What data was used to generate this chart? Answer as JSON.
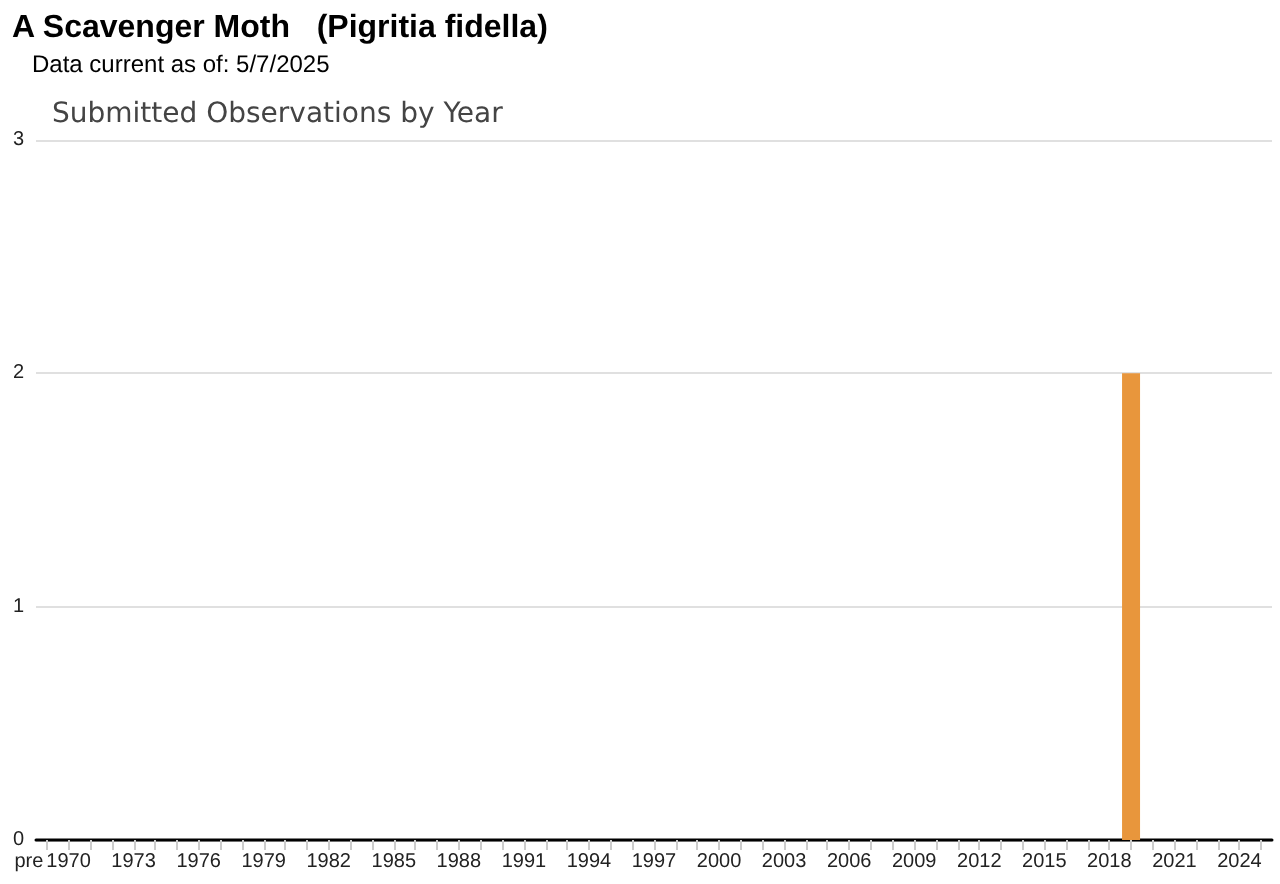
{
  "chart_data": {
    "type": "bar",
    "title": "A Scavenger Moth   (Pigritia fidella)",
    "subtitle": "Submitted Observations by Year",
    "annotations": [
      "Data current as of: 5/7/2025"
    ],
    "categories": [
      "pre",
      "1970",
      null,
      null,
      "1973",
      null,
      null,
      "1976",
      null,
      null,
      "1979",
      null,
      null,
      "1982",
      null,
      null,
      "1985",
      null,
      null,
      "1988",
      null,
      null,
      "1991",
      null,
      null,
      "1994",
      null,
      null,
      "1997",
      null,
      null,
      "2000",
      null,
      null,
      "2003",
      null,
      null,
      "2006",
      null,
      null,
      "2009",
      null,
      null,
      "2012",
      null,
      null,
      "2015",
      null,
      null,
      "2018",
      null,
      null,
      "2021",
      null,
      null,
      "2024",
      null
    ],
    "values": [
      0,
      0,
      0,
      0,
      0,
      0,
      0,
      0,
      0,
      0,
      0,
      0,
      0,
      0,
      0,
      0,
      0,
      0,
      0,
      0,
      0,
      0,
      0,
      0,
      0,
      0,
      0,
      0,
      0,
      0,
      0,
      0,
      0,
      0,
      0,
      0,
      0,
      0,
      0,
      0,
      0,
      0,
      0,
      0,
      0,
      0,
      0,
      0,
      0,
      0,
      2,
      0,
      0,
      0,
      0,
      0,
      0
    ],
    "color": "#e8963c",
    "ylim": [
      0,
      3
    ],
    "yticks": [
      0,
      1,
      2,
      3
    ],
    "grid": "y"
  }
}
